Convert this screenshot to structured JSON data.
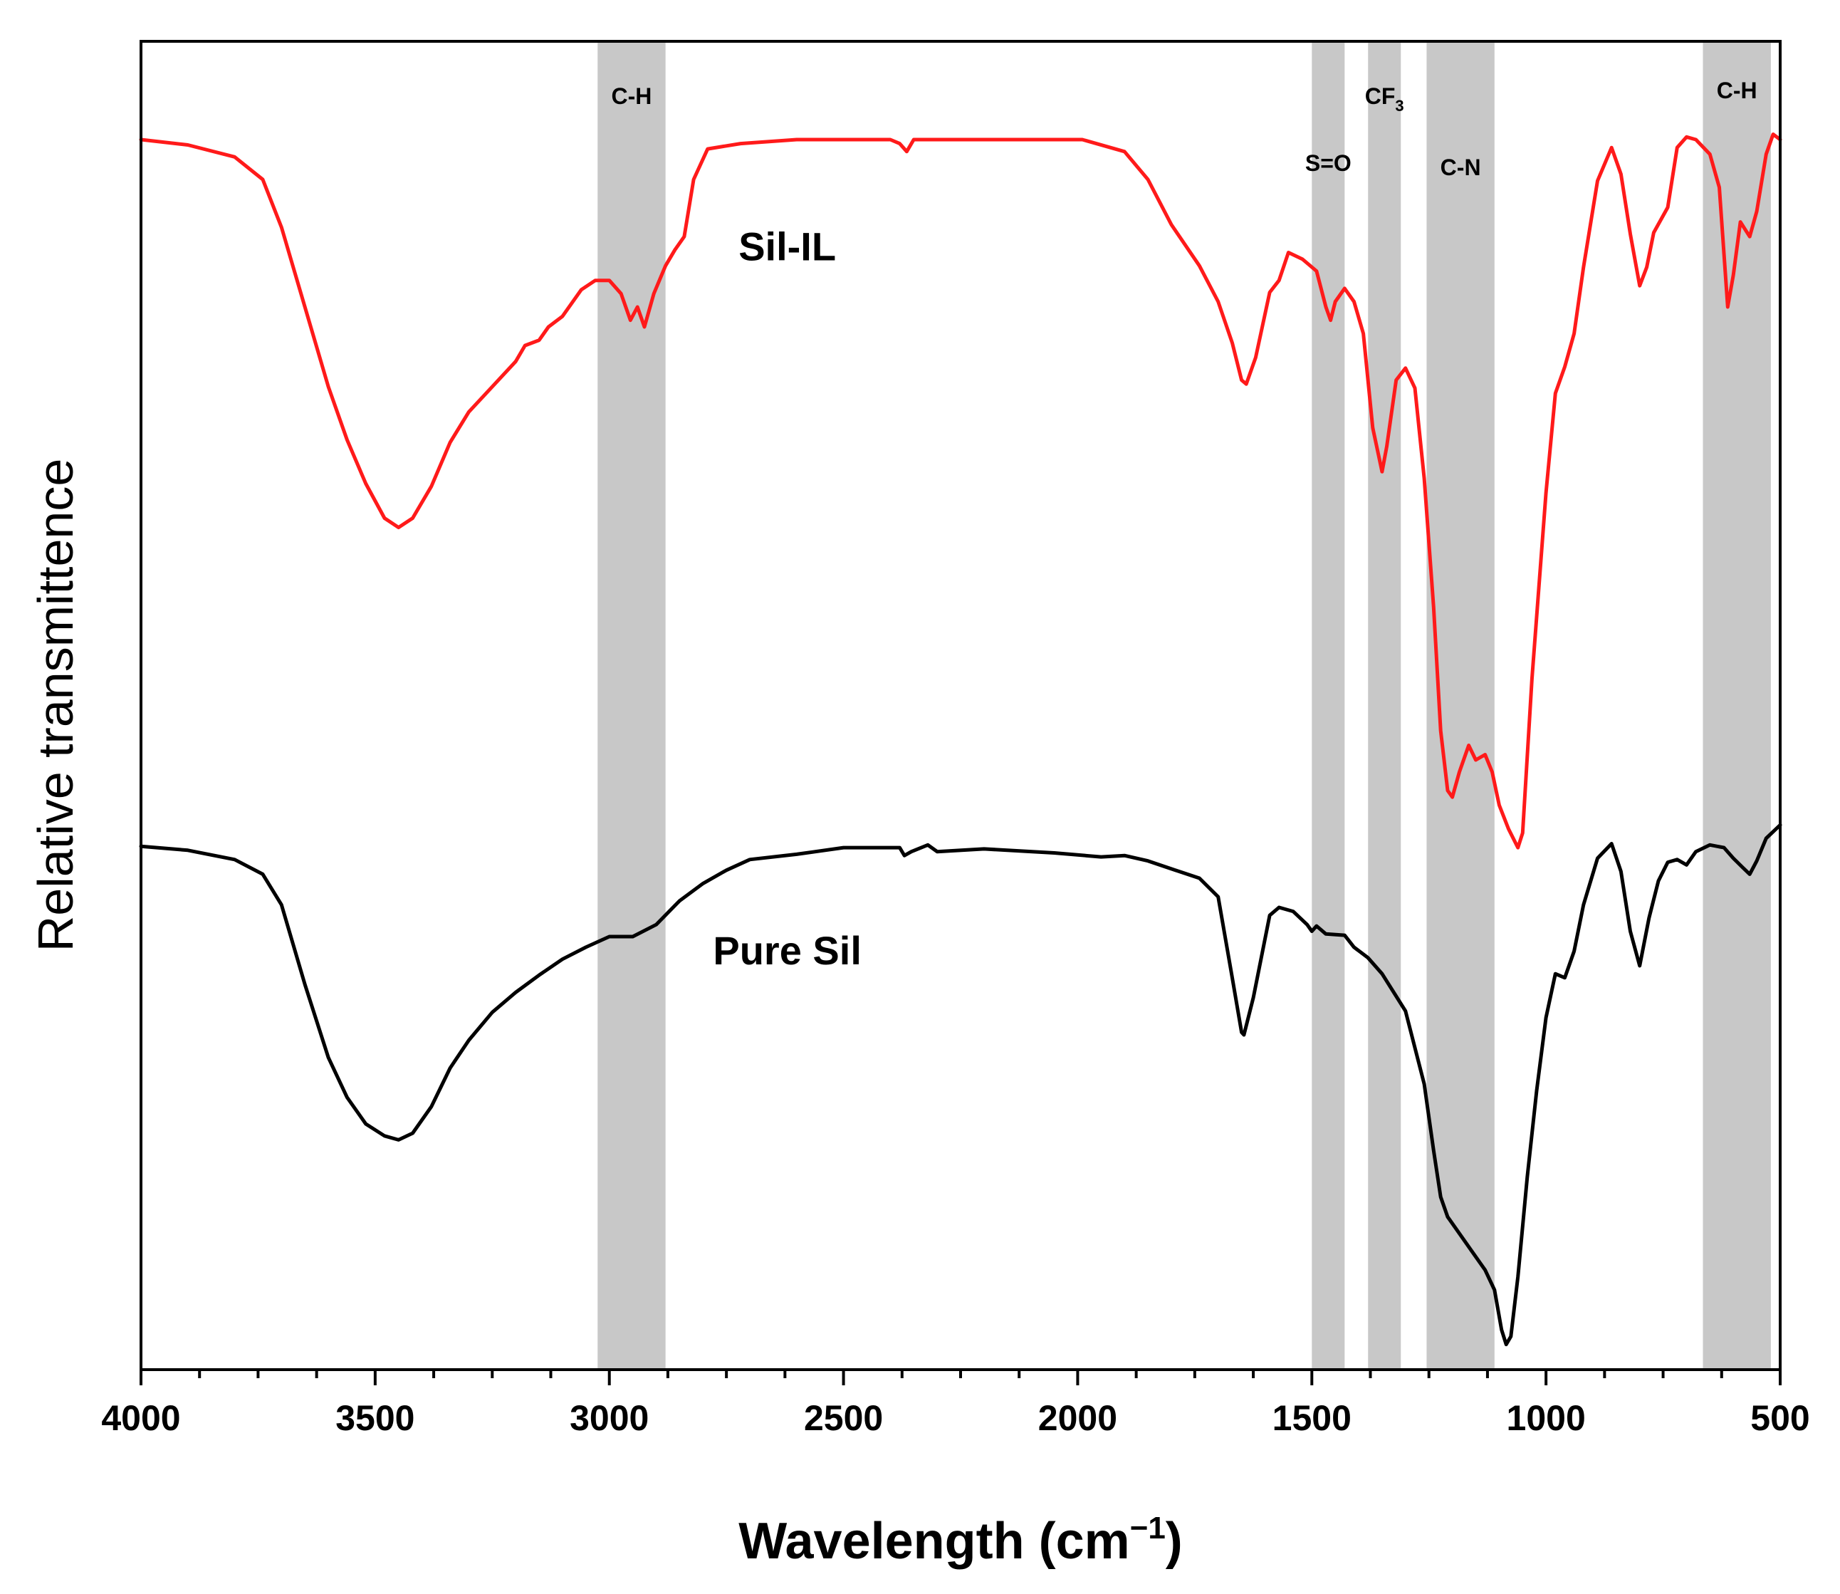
{
  "chart_data": {
    "type": "line",
    "title": "",
    "xlabel": "Wavelength (cm",
    "xlabel_sup": "−1",
    "xlabel_close": ")",
    "ylabel": "Relative transmittence",
    "xlim": [
      4000,
      500
    ],
    "ylim": [
      0,
      100
    ],
    "x_ticks": [
      4000,
      3500,
      3000,
      2500,
      2000,
      1500,
      1000,
      500
    ],
    "x_tick_labels": [
      "4000",
      "3500",
      "3000",
      "2500",
      "2000",
      "1500",
      "1000",
      "500"
    ],
    "minor_tick_step": 125,
    "bands": [
      {
        "name": "C-H",
        "from": 3025,
        "to": 2880
      },
      {
        "name": "S=O",
        "from": 1500,
        "to": 1430
      },
      {
        "name": "CF",
        "sub": "3",
        "from": 1380,
        "to": 1310
      },
      {
        "name": "C-N",
        "from": 1255,
        "to": 1110
      },
      {
        "name": "C-H",
        "from": 665,
        "to": 520
      }
    ],
    "series": [
      {
        "name": "Sil-IL",
        "color": "#ff1a1a",
        "label_at": [
          2620,
          83.5
        ],
        "points": [
          [
            4000,
            92.6
          ],
          [
            3900,
            92.2
          ],
          [
            3800,
            91.3
          ],
          [
            3740,
            89.6
          ],
          [
            3700,
            86.0
          ],
          [
            3650,
            80.0
          ],
          [
            3600,
            74.0
          ],
          [
            3560,
            70.0
          ],
          [
            3520,
            66.7
          ],
          [
            3480,
            64.1
          ],
          [
            3450,
            63.4
          ],
          [
            3420,
            64.1
          ],
          [
            3380,
            66.5
          ],
          [
            3340,
            69.8
          ],
          [
            3300,
            72.1
          ],
          [
            3250,
            74.0
          ],
          [
            3200,
            75.9
          ],
          [
            3180,
            77.1
          ],
          [
            3150,
            77.5
          ],
          [
            3130,
            78.5
          ],
          [
            3100,
            79.3
          ],
          [
            3060,
            81.3
          ],
          [
            3030,
            82.0
          ],
          [
            3000,
            82.0
          ],
          [
            2975,
            81.0
          ],
          [
            2955,
            79.0
          ],
          [
            2940,
            80.0
          ],
          [
            2925,
            78.5
          ],
          [
            2905,
            81.0
          ],
          [
            2880,
            83.1
          ],
          [
            2860,
            84.3
          ],
          [
            2840,
            85.3
          ],
          [
            2820,
            89.6
          ],
          [
            2790,
            91.9
          ],
          [
            2720,
            92.3
          ],
          [
            2600,
            92.6
          ],
          [
            2400,
            92.6
          ],
          [
            2380,
            92.3
          ],
          [
            2365,
            91.7
          ],
          [
            2350,
            92.6
          ],
          [
            2200,
            92.6
          ],
          [
            1990,
            92.6
          ],
          [
            1900,
            91.7
          ],
          [
            1850,
            89.6
          ],
          [
            1800,
            86.2
          ],
          [
            1740,
            83.1
          ],
          [
            1700,
            80.4
          ],
          [
            1670,
            77.3
          ],
          [
            1650,
            74.5
          ],
          [
            1640,
            74.2
          ],
          [
            1620,
            76.2
          ],
          [
            1590,
            81.1
          ],
          [
            1570,
            82.0
          ],
          [
            1550,
            84.1
          ],
          [
            1520,
            83.6
          ],
          [
            1490,
            82.7
          ],
          [
            1470,
            80.0
          ],
          [
            1460,
            79.0
          ],
          [
            1450,
            80.4
          ],
          [
            1430,
            81.4
          ],
          [
            1410,
            80.4
          ],
          [
            1390,
            78.0
          ],
          [
            1370,
            70.9
          ],
          [
            1350,
            67.6
          ],
          [
            1340,
            69.5
          ],
          [
            1320,
            74.5
          ],
          [
            1300,
            75.4
          ],
          [
            1280,
            73.9
          ],
          [
            1260,
            67.1
          ],
          [
            1240,
            57.4
          ],
          [
            1225,
            48.1
          ],
          [
            1210,
            43.6
          ],
          [
            1200,
            43.1
          ],
          [
            1185,
            45.0
          ],
          [
            1165,
            47.0
          ],
          [
            1150,
            45.9
          ],
          [
            1130,
            46.3
          ],
          [
            1115,
            45.0
          ],
          [
            1100,
            42.5
          ],
          [
            1080,
            40.7
          ],
          [
            1060,
            39.3
          ],
          [
            1050,
            40.4
          ],
          [
            1030,
            52.0
          ],
          [
            1000,
            66.0
          ],
          [
            980,
            73.5
          ],
          [
            960,
            75.5
          ],
          [
            940,
            78.0
          ],
          [
            920,
            83.0
          ],
          [
            890,
            89.5
          ],
          [
            860,
            92.0
          ],
          [
            840,
            90.0
          ],
          [
            820,
            85.5
          ],
          [
            800,
            81.6
          ],
          [
            785,
            83.0
          ],
          [
            770,
            85.6
          ],
          [
            740,
            87.5
          ],
          [
            720,
            92.0
          ],
          [
            700,
            92.8
          ],
          [
            680,
            92.6
          ],
          [
            650,
            91.5
          ],
          [
            630,
            89.0
          ],
          [
            612,
            80.0
          ],
          [
            600,
            82.4
          ],
          [
            585,
            86.4
          ],
          [
            565,
            85.3
          ],
          [
            550,
            87.2
          ],
          [
            530,
            91.5
          ],
          [
            515,
            93.0
          ],
          [
            500,
            92.6
          ]
        ]
      },
      {
        "name": "Pure Sil",
        "color": "#000000",
        "label_at": [
          2620,
          30.5
        ],
        "points": [
          [
            4000,
            39.4
          ],
          [
            3900,
            39.1
          ],
          [
            3800,
            38.4
          ],
          [
            3740,
            37.3
          ],
          [
            3700,
            35.0
          ],
          [
            3650,
            29.0
          ],
          [
            3600,
            23.5
          ],
          [
            3560,
            20.5
          ],
          [
            3520,
            18.5
          ],
          [
            3480,
            17.6
          ],
          [
            3450,
            17.3
          ],
          [
            3420,
            17.8
          ],
          [
            3380,
            19.8
          ],
          [
            3340,
            22.7
          ],
          [
            3300,
            24.8
          ],
          [
            3250,
            26.9
          ],
          [
            3200,
            28.4
          ],
          [
            3150,
            29.7
          ],
          [
            3100,
            30.9
          ],
          [
            3050,
            31.8
          ],
          [
            3000,
            32.6
          ],
          [
            2950,
            32.6
          ],
          [
            2900,
            33.5
          ],
          [
            2850,
            35.3
          ],
          [
            2800,
            36.6
          ],
          [
            2750,
            37.6
          ],
          [
            2700,
            38.4
          ],
          [
            2600,
            38.8
          ],
          [
            2500,
            39.3
          ],
          [
            2380,
            39.3
          ],
          [
            2370,
            38.7
          ],
          [
            2355,
            39.0
          ],
          [
            2320,
            39.5
          ],
          [
            2300,
            39.0
          ],
          [
            2200,
            39.2
          ],
          [
            2050,
            38.9
          ],
          [
            1950,
            38.6
          ],
          [
            1900,
            38.7
          ],
          [
            1850,
            38.3
          ],
          [
            1800,
            37.7
          ],
          [
            1740,
            37.0
          ],
          [
            1700,
            35.6
          ],
          [
            1670,
            29.5
          ],
          [
            1650,
            25.4
          ],
          [
            1645,
            25.2
          ],
          [
            1625,
            28.0
          ],
          [
            1590,
            34.2
          ],
          [
            1570,
            34.8
          ],
          [
            1540,
            34.5
          ],
          [
            1510,
            33.5
          ],
          [
            1500,
            33.0
          ],
          [
            1490,
            33.4
          ],
          [
            1470,
            32.8
          ],
          [
            1430,
            32.7
          ],
          [
            1410,
            31.8
          ],
          [
            1380,
            31.0
          ],
          [
            1350,
            29.8
          ],
          [
            1300,
            27.0
          ],
          [
            1260,
            21.5
          ],
          [
            1240,
            16.5
          ],
          [
            1225,
            13.0
          ],
          [
            1210,
            11.5
          ],
          [
            1190,
            10.5
          ],
          [
            1160,
            9.0
          ],
          [
            1130,
            7.5
          ],
          [
            1110,
            6.0
          ],
          [
            1095,
            3.0
          ],
          [
            1085,
            1.9
          ],
          [
            1075,
            2.5
          ],
          [
            1060,
            7.0
          ],
          [
            1040,
            14.5
          ],
          [
            1020,
            21.0
          ],
          [
            1000,
            26.5
          ],
          [
            980,
            29.8
          ],
          [
            960,
            29.5
          ],
          [
            940,
            31.5
          ],
          [
            920,
            35.0
          ],
          [
            890,
            38.5
          ],
          [
            860,
            39.6
          ],
          [
            840,
            37.5
          ],
          [
            820,
            33.0
          ],
          [
            800,
            30.4
          ],
          [
            780,
            34.0
          ],
          [
            760,
            36.8
          ],
          [
            740,
            38.2
          ],
          [
            720,
            38.4
          ],
          [
            700,
            38.0
          ],
          [
            680,
            39.0
          ],
          [
            650,
            39.5
          ],
          [
            620,
            39.3
          ],
          [
            600,
            38.5
          ],
          [
            580,
            37.8
          ],
          [
            565,
            37.3
          ],
          [
            550,
            38.3
          ],
          [
            530,
            40.0
          ],
          [
            500,
            41.0
          ]
        ]
      }
    ]
  }
}
